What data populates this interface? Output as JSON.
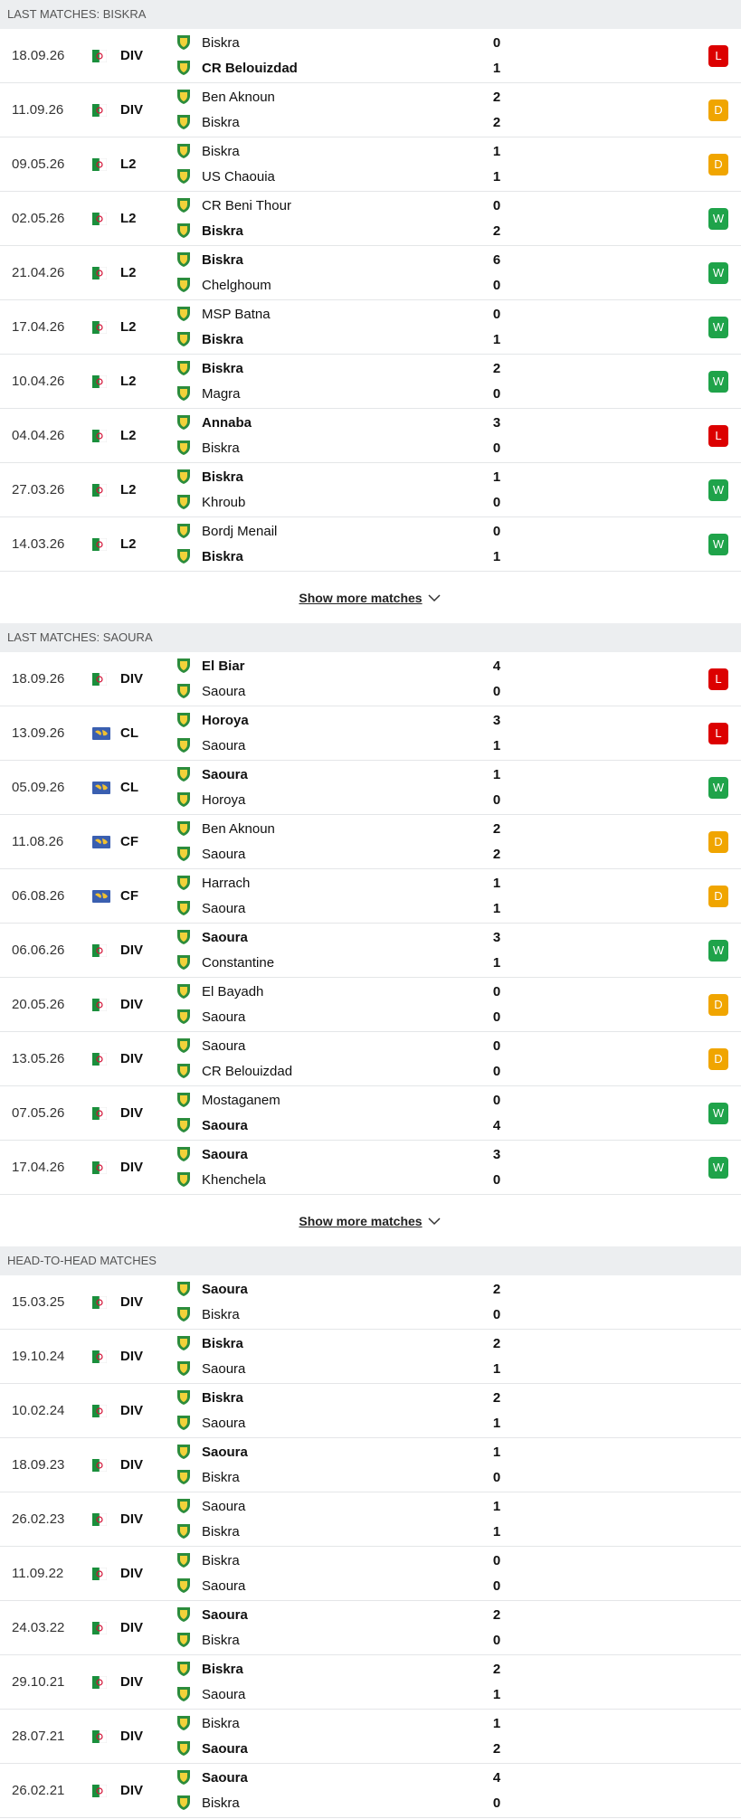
{
  "sections": [
    {
      "title": "LAST MATCHES: BISKRA",
      "show_more": "Show more matches",
      "matches": [
        {
          "date": "18.09.26",
          "league": "DIV",
          "flag": "dz",
          "home": "Biskra",
          "home_score": 0,
          "away": "CR Belouizdad",
          "away_score": 1,
          "bold": "away",
          "result": "L"
        },
        {
          "date": "11.09.26",
          "league": "DIV",
          "flag": "dz",
          "home": "Ben Aknoun",
          "home_score": 2,
          "away": "Biskra",
          "away_score": 2,
          "bold": null,
          "result": "D"
        },
        {
          "date": "09.05.26",
          "league": "L2",
          "flag": "dz",
          "home": "Biskra",
          "home_score": 1,
          "away": "US Chaouia",
          "away_score": 1,
          "bold": null,
          "result": "D"
        },
        {
          "date": "02.05.26",
          "league": "L2",
          "flag": "dz",
          "home": "CR Beni Thour",
          "home_score": 0,
          "away": "Biskra",
          "away_score": 2,
          "bold": "away",
          "result": "W"
        },
        {
          "date": "21.04.26",
          "league": "L2",
          "flag": "dz",
          "home": "Biskra",
          "home_score": 6,
          "away": "Chelghoum",
          "away_score": 0,
          "bold": "home",
          "result": "W"
        },
        {
          "date": "17.04.26",
          "league": "L2",
          "flag": "dz",
          "home": "MSP Batna",
          "home_score": 0,
          "away": "Biskra",
          "away_score": 1,
          "bold": "away",
          "result": "W"
        },
        {
          "date": "10.04.26",
          "league": "L2",
          "flag": "dz",
          "home": "Biskra",
          "home_score": 2,
          "away": "Magra",
          "away_score": 0,
          "bold": "home",
          "result": "W"
        },
        {
          "date": "04.04.26",
          "league": "L2",
          "flag": "dz",
          "home": "Annaba",
          "home_score": 3,
          "away": "Biskra",
          "away_score": 0,
          "bold": "home",
          "result": "L"
        },
        {
          "date": "27.03.26",
          "league": "L2",
          "flag": "dz",
          "home": "Biskra",
          "home_score": 1,
          "away": "Khroub",
          "away_score": 0,
          "bold": "home",
          "result": "W"
        },
        {
          "date": "14.03.26",
          "league": "L2",
          "flag": "dz",
          "home": "Bordj Menail",
          "home_score": 0,
          "away": "Biskra",
          "away_score": 1,
          "bold": "away",
          "result": "W"
        }
      ]
    },
    {
      "title": "LAST MATCHES: SAOURA",
      "show_more": "Show more matches",
      "matches": [
        {
          "date": "18.09.26",
          "league": "DIV",
          "flag": "dz",
          "home": "El Biar",
          "home_score": 4,
          "away": "Saoura",
          "away_score": 0,
          "bold": "home",
          "result": "L"
        },
        {
          "date": "13.09.26",
          "league": "CL",
          "flag": "world",
          "home": "Horoya",
          "home_score": 3,
          "away": "Saoura",
          "away_score": 1,
          "bold": "home",
          "result": "L"
        },
        {
          "date": "05.09.26",
          "league": "CL",
          "flag": "world",
          "home": "Saoura",
          "home_score": 1,
          "away": "Horoya",
          "away_score": 0,
          "bold": "home",
          "result": "W"
        },
        {
          "date": "11.08.26",
          "league": "CF",
          "flag": "world",
          "home": "Ben Aknoun",
          "home_score": 2,
          "away": "Saoura",
          "away_score": 2,
          "bold": null,
          "result": "D"
        },
        {
          "date": "06.08.26",
          "league": "CF",
          "flag": "world",
          "home": "Harrach",
          "home_score": 1,
          "away": "Saoura",
          "away_score": 1,
          "bold": null,
          "result": "D"
        },
        {
          "date": "06.06.26",
          "league": "DIV",
          "flag": "dz",
          "home": "Saoura",
          "home_score": 3,
          "away": "Constantine",
          "away_score": 1,
          "bold": "home",
          "result": "W"
        },
        {
          "date": "20.05.26",
          "league": "DIV",
          "flag": "dz",
          "home": "El Bayadh",
          "home_score": 0,
          "away": "Saoura",
          "away_score": 0,
          "bold": null,
          "result": "D"
        },
        {
          "date": "13.05.26",
          "league": "DIV",
          "flag": "dz",
          "home": "Saoura",
          "home_score": 0,
          "away": "CR Belouizdad",
          "away_score": 0,
          "bold": null,
          "result": "D"
        },
        {
          "date": "07.05.26",
          "league": "DIV",
          "flag": "dz",
          "home": "Mostaganem",
          "home_score": 0,
          "away": "Saoura",
          "away_score": 4,
          "bold": "away",
          "result": "W"
        },
        {
          "date": "17.04.26",
          "league": "DIV",
          "flag": "dz",
          "home": "Saoura",
          "home_score": 3,
          "away": "Khenchela",
          "away_score": 0,
          "bold": "home",
          "result": "W"
        }
      ]
    },
    {
      "title": "HEAD-TO-HEAD MATCHES",
      "matches": [
        {
          "date": "15.03.25",
          "league": "DIV",
          "flag": "dz",
          "home": "Saoura",
          "home_score": 2,
          "away": "Biskra",
          "away_score": 0,
          "bold": "home"
        },
        {
          "date": "19.10.24",
          "league": "DIV",
          "flag": "dz",
          "home": "Biskra",
          "home_score": 2,
          "away": "Saoura",
          "away_score": 1,
          "bold": "home"
        },
        {
          "date": "10.02.24",
          "league": "DIV",
          "flag": "dz",
          "home": "Biskra",
          "home_score": 2,
          "away": "Saoura",
          "away_score": 1,
          "bold": "home"
        },
        {
          "date": "18.09.23",
          "league": "DIV",
          "flag": "dz",
          "home": "Saoura",
          "home_score": 1,
          "away": "Biskra",
          "away_score": 0,
          "bold": "home"
        },
        {
          "date": "26.02.23",
          "league": "DIV",
          "flag": "dz",
          "home": "Saoura",
          "home_score": 1,
          "away": "Biskra",
          "away_score": 1,
          "bold": null
        },
        {
          "date": "11.09.22",
          "league": "DIV",
          "flag": "dz",
          "home": "Biskra",
          "home_score": 0,
          "away": "Saoura",
          "away_score": 0,
          "bold": null
        },
        {
          "date": "24.03.22",
          "league": "DIV",
          "flag": "dz",
          "home": "Saoura",
          "home_score": 2,
          "away": "Biskra",
          "away_score": 0,
          "bold": "home"
        },
        {
          "date": "29.10.21",
          "league": "DIV",
          "flag": "dz",
          "home": "Biskra",
          "home_score": 2,
          "away": "Saoura",
          "away_score": 1,
          "bold": "home"
        },
        {
          "date": "28.07.21",
          "league": "DIV",
          "flag": "dz",
          "home": "Biskra",
          "home_score": 1,
          "away": "Saoura",
          "away_score": 2,
          "bold": "away"
        },
        {
          "date": "26.02.21",
          "league": "DIV",
          "flag": "dz",
          "home": "Saoura",
          "home_score": 4,
          "away": "Biskra",
          "away_score": 0,
          "bold": "home"
        }
      ]
    }
  ]
}
